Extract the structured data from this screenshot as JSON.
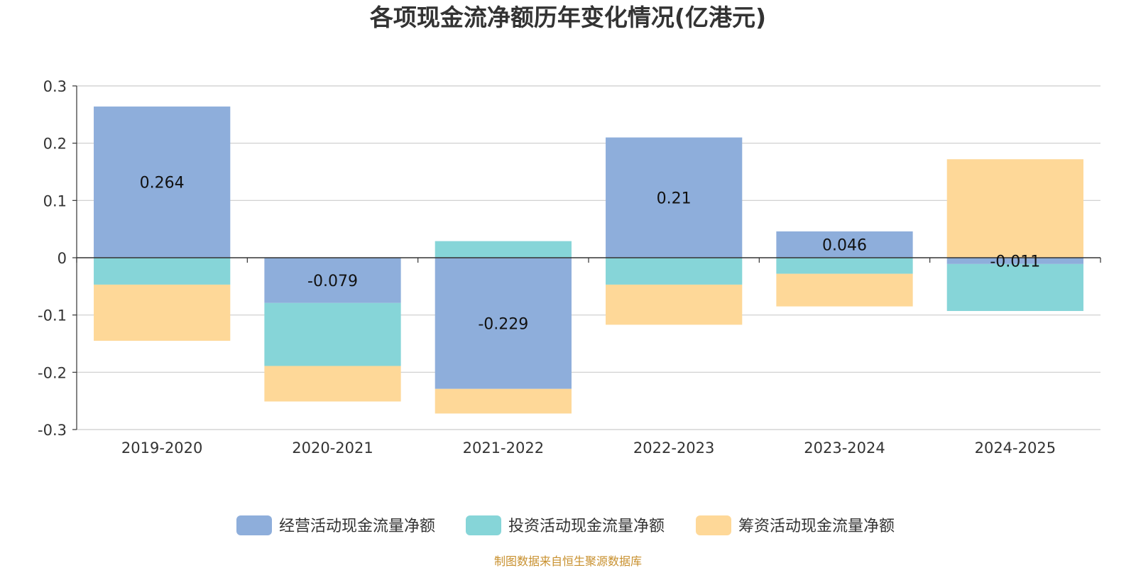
{
  "chart_data": {
    "type": "bar",
    "stacked": true,
    "title": "各项现金流净额历年变化情况(亿港元)",
    "categories": [
      "2019-2020",
      "2020-2021",
      "2021-2022",
      "2022-2023",
      "2023-2024",
      "2024-2025"
    ],
    "series": [
      {
        "name": "经营活动现金流量净额",
        "color": "#8eaedb",
        "values": [
          0.264,
          -0.079,
          -0.229,
          0.21,
          0.046,
          -0.011
        ]
      },
      {
        "name": "投资活动现金流量净额",
        "color": "#86d5d8",
        "values": [
          -0.047,
          -0.11,
          0.029,
          -0.047,
          -0.028,
          -0.082
        ]
      },
      {
        "name": "筹资活动现金流量净额",
        "color": "#fed898",
        "values": [
          -0.098,
          -0.062,
          -0.043,
          -0.07,
          -0.057,
          0.172
        ]
      }
    ],
    "data_labels": [
      "0.264",
      "-0.079",
      "-0.229",
      "0.21",
      "0.046",
      "-0.011"
    ],
    "yticks": [
      "0.3",
      "0.2",
      "0.1",
      "0",
      "-0.1",
      "-0.2",
      "-0.3"
    ],
    "ylim": [
      -0.3,
      0.3
    ],
    "grid": true,
    "legend_position": "bottom",
    "source": "制图数据来自恒生聚源数据库",
    "source_color": "#c8902e"
  }
}
